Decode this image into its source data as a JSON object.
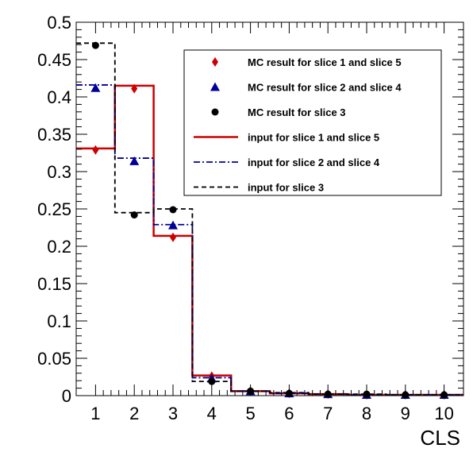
{
  "chart_data": {
    "type": "step",
    "xlabel": "CLS",
    "ylabel": "",
    "xlim": [
      0.5,
      10.5
    ],
    "ylim": [
      0,
      0.5
    ],
    "x_ticks": [
      "1",
      "2",
      "3",
      "4",
      "5",
      "6",
      "7",
      "8",
      "9",
      "10"
    ],
    "y_ticks": [
      "0",
      "0.05",
      "0.1",
      "0.15",
      "0.2",
      "0.25",
      "0.3",
      "0.35",
      "0.4",
      "0.45",
      "0.5"
    ],
    "grid": false,
    "legend_position": "top-right",
    "colors": {
      "red": "#cc0000",
      "blue": "#000099",
      "black": "#000000"
    },
    "lines": [
      {
        "name": "input for slice 1 and slice 5",
        "style": "solid",
        "color": "#cc0000",
        "values": [
          0.331,
          0.415,
          0.214,
          0.027,
          0.006,
          0.003,
          0.002,
          0.001,
          0.001,
          0.001
        ]
      },
      {
        "name": "input for slice 2 and slice 4",
        "style": "dashdot",
        "color": "#000099",
        "values": [
          0.416,
          0.318,
          0.229,
          0.024,
          0.006,
          0.003,
          0.002,
          0.001,
          0.001,
          0.001
        ]
      },
      {
        "name": "input for slice 3",
        "style": "dashed",
        "color": "#000000",
        "values": [
          0.472,
          0.245,
          0.25,
          0.019,
          0.006,
          0.004,
          0.002,
          0.002,
          0.001,
          0.001
        ]
      }
    ],
    "markers": [
      {
        "name": "MC result for slice 1 and slice 5",
        "shape": "diamond",
        "color": "#cc0000",
        "values": [
          0.329,
          0.411,
          0.212,
          0.026,
          0.006,
          0.003,
          0.002,
          0.001,
          0.001,
          0.001
        ]
      },
      {
        "name": "MC result for slice 2 and slice 4",
        "shape": "triangle",
        "color": "#000099",
        "values": [
          0.412,
          0.314,
          0.228,
          0.023,
          0.006,
          0.003,
          0.002,
          0.001,
          0.001,
          0.001
        ]
      },
      {
        "name": "MC result for slice 3",
        "shape": "circle",
        "color": "#000000",
        "values": [
          0.469,
          0.242,
          0.249,
          0.019,
          0.006,
          0.003,
          0.002,
          0.002,
          0.001,
          0.001
        ]
      }
    ]
  }
}
